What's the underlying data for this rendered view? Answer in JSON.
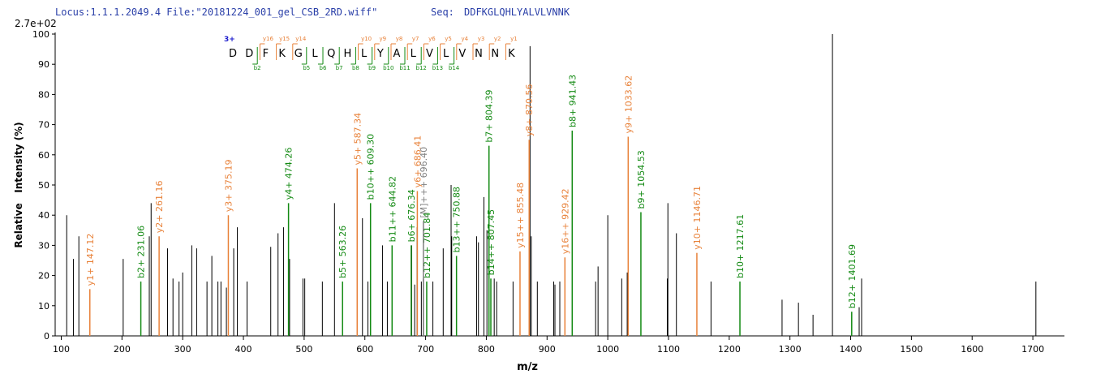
{
  "chart_data": {
    "type": "spectrum",
    "locus": "Locus:1.1.1.2049.4 File:\"20181224_001_gel_CSB_2RD.wiff\"",
    "seq_label": "Seq:",
    "seq": "DDFKGLQHLYALVLVNNK",
    "scale_label": "2.7e+02",
    "xlabel": "m/z",
    "ylabel": "Relative   Intensity (%)",
    "xlim": [
      90,
      1752
    ],
    "ylim": [
      0,
      100
    ],
    "xticks": [
      100,
      200,
      300,
      400,
      500,
      600,
      700,
      800,
      900,
      1000,
      1100,
      1200,
      1300,
      1400,
      1500,
      1600,
      1700
    ],
    "yticks": [
      0,
      10,
      20,
      30,
      40,
      50,
      60,
      70,
      80,
      90,
      100
    ],
    "series": [
      {
        "color": "#000000",
        "x": [
          109,
          120,
          129,
          202,
          245,
          248,
          275,
          284,
          294,
          300,
          315,
          323,
          340,
          348,
          358,
          363,
          372,
          384,
          390,
          406,
          445,
          457,
          466,
          476,
          498,
          501,
          530,
          550,
          596,
          605,
          629,
          637,
          677,
          682,
          686,
          693,
          696,
          712,
          729,
          742,
          743,
          784,
          787,
          796,
          801,
          813,
          817,
          844,
          872,
          874,
          884,
          911,
          913,
          921,
          980,
          984,
          1000,
          1023,
          1032,
          1098,
          1099,
          1113,
          1170,
          1287,
          1314,
          1338,
          1370,
          1414,
          1418,
          1705
        ],
        "values": [
          40,
          25.5,
          33,
          25.5,
          33,
          44,
          29,
          19,
          18,
          21,
          30,
          29,
          18,
          26.5,
          18,
          18,
          16,
          29,
          36,
          18,
          29.5,
          34,
          36,
          25.5,
          19,
          19,
          18,
          44,
          39,
          18,
          30,
          18,
          30,
          17,
          36,
          18,
          19,
          18,
          29,
          50,
          33,
          33,
          31,
          46,
          35,
          19,
          18,
          18,
          96,
          33,
          18,
          18,
          17,
          18,
          18,
          23,
          40,
          19,
          21,
          19,
          44,
          34,
          18,
          12,
          11,
          7,
          100,
          9.5,
          19,
          18
        ]
      },
      {
        "color": "#138a13",
        "x": [
          231.06,
          474.26,
          563.26,
          609.3,
          644.82,
          676.34,
          701.84,
          750.88,
          804.39,
          807.45,
          941.43,
          1054.53,
          1217.61,
          1401.69
        ],
        "values": [
          18,
          44,
          18,
          44,
          30,
          30,
          18,
          26.5,
          63,
          19,
          68,
          41,
          18,
          8
        ],
        "labels": [
          "b2+ 231.06",
          "y4+ 474.26",
          "b5+ 563.26",
          "b10++ 609.30",
          "b11++ 644.82",
          "b6+ 676.34",
          "b12++ 701.84",
          "b13++ 750.88",
          "b7+ 804.39",
          "b14++ 807.45",
          "b8+ 941.43",
          "b9+ 1054.53",
          "b10+ 1217.61",
          "b12+ 1401.69"
        ]
      },
      {
        "color": "#e8823a",
        "x": [
          147.12,
          261.16,
          375.19,
          587.34,
          686.41,
          855.48,
          870.56,
          929.42,
          1033.62,
          1146.71
        ],
        "values": [
          15.5,
          33,
          40,
          55.5,
          48,
          28,
          65,
          26,
          66,
          27.5
        ],
        "labels": [
          "y1+ 147.12",
          "y2+ 261.16",
          "y3+ 375.19",
          "y5+ 587.34",
          "y6+ 686.41",
          "y15++ 855.48",
          "y8+ 870.56",
          "y16++ 929.42",
          "y9+ 1033.62",
          "y10+ 1146.71"
        ]
      },
      {
        "color": "#808080",
        "x": [
          696.4
        ],
        "values": [
          38
        ],
        "labels": [
          "[M]+++ 696.40"
        ]
      }
    ],
    "charge": "3+",
    "residues": [
      "D",
      "D",
      "F",
      "K",
      "G",
      "L",
      "Q",
      "H",
      "L",
      "Y",
      "A",
      "L",
      "V",
      "L",
      "V",
      "N",
      "N",
      "K"
    ],
    "y_fragments": [
      null,
      null,
      "y16",
      "y15",
      "y14",
      null,
      null,
      null,
      "y10",
      "y9",
      "y8",
      "y7",
      "y6",
      "y5",
      "y4",
      "y3",
      "y2",
      "y1"
    ],
    "b_fragments": [
      null,
      "b2",
      null,
      null,
      "b5",
      "b6",
      "b7",
      "b8",
      "b9",
      "b10",
      "b11",
      "b12",
      "b13",
      "b14",
      null,
      null,
      null,
      null
    ]
  }
}
